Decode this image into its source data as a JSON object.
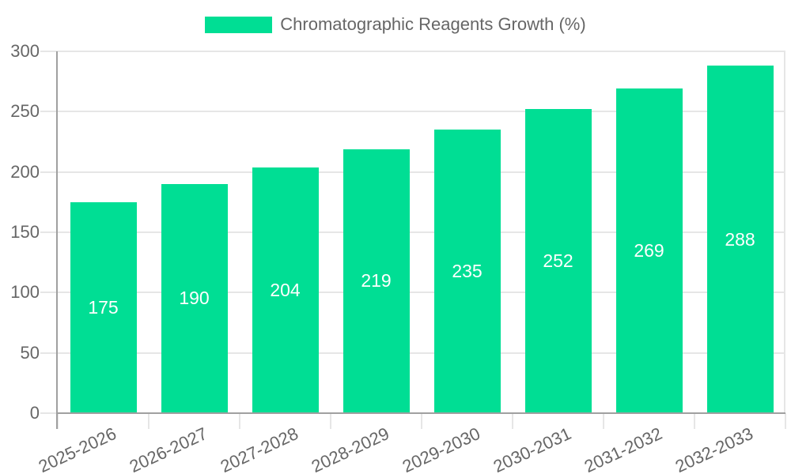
{
  "chart_data": {
    "type": "bar",
    "title": "Chromatographic Reagents Growth (%)",
    "categories": [
      "2025-2026",
      "2026-2027",
      "2027-2028",
      "2028-2029",
      "2029-2030",
      "2030-2031",
      "2031-2032",
      "2032-2033"
    ],
    "values": [
      175,
      190,
      204,
      219,
      235,
      252,
      269,
      288
    ],
    "xlabel": "",
    "ylabel": "",
    "ylim": [
      0,
      300
    ],
    "yticks": [
      0,
      50,
      100,
      150,
      200,
      250,
      300
    ],
    "grid": true,
    "legend_position": "top",
    "bar_color": "#00de94",
    "value_label_color": "#ffffff",
    "tick_label_color": "#666666",
    "gridline_color": "#e6e6e6",
    "axis_line_color": "#a0a0a0"
  }
}
